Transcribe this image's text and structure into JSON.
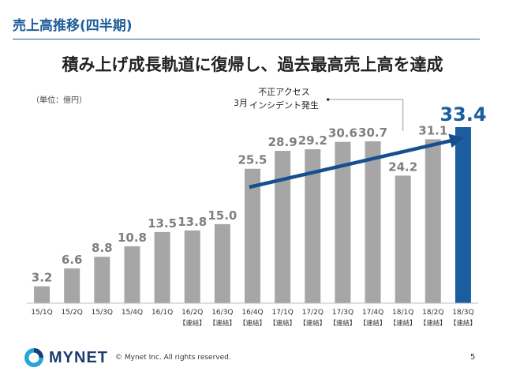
{
  "header": {
    "section_title": "売上高推移(四半期)",
    "headline": "積み上げ成長軌道に復帰し、過去最高売上高を達成"
  },
  "unit_label": "（単位：億円）",
  "annotation": {
    "month": "3月",
    "line1": "不正アクセス",
    "line2": "インシデント発生"
  },
  "colors": {
    "bar": "#a6a6a6",
    "highlight": "#1a5ea0",
    "label": "#7f7f7f",
    "highlight_label": "#1a5ea0",
    "arrow": "#174f8e"
  },
  "chart_data": {
    "type": "bar",
    "categories": [
      "15/1Q",
      "15/2Q",
      "15/3Q",
      "15/4Q",
      "16/1Q",
      "16/2Q",
      "16/3Q",
      "16/4Q",
      "17/1Q",
      "17/2Q",
      "17/3Q",
      "17/4Q",
      "18/1Q",
      "18/2Q",
      "18/3Q"
    ],
    "sublabels": [
      "",
      "",
      "",
      "",
      "",
      "【連結】",
      "【連結】",
      "【連結】",
      "【連結】",
      "【連結】",
      "【連結】",
      "【連結】",
      "【連結】",
      "【連結】",
      "【連結】"
    ],
    "values": [
      3.2,
      6.6,
      8.8,
      10.8,
      13.5,
      13.8,
      15.0,
      25.5,
      28.9,
      29.2,
      30.6,
      30.7,
      24.2,
      31.1,
      33.4
    ],
    "value_labels": [
      "3.2",
      "6.6",
      "8.8",
      "10.8",
      "13.5",
      "13.8",
      "15.0",
      "25.5",
      "28.9",
      "29.2",
      "30.6",
      "30.7",
      "24.2",
      "31.1",
      "33.4"
    ],
    "highlight_index": 14,
    "ylim": [
      0,
      33.4
    ],
    "trend_arrow": {
      "from_index": 7,
      "to_index": 14
    }
  },
  "footer": {
    "logo": "MYNET",
    "copyright": "© Mynet Inc. All rights reserved.",
    "page_number": "5"
  }
}
